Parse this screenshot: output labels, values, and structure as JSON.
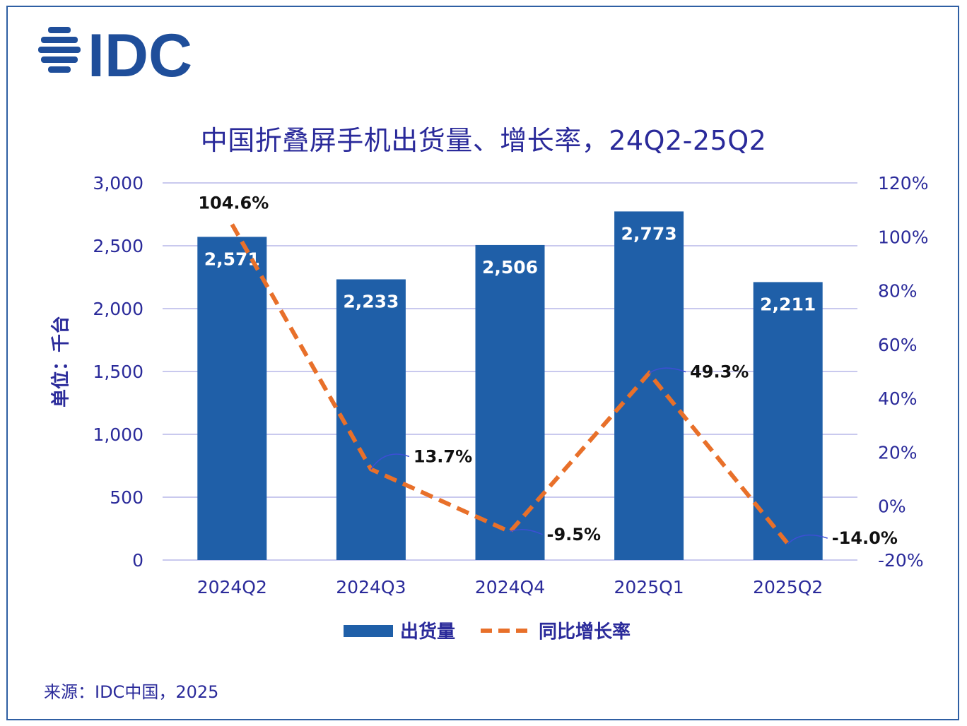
{
  "brand": {
    "logo_text": "IDC",
    "color": "#1f4e9a"
  },
  "chart_data": {
    "type": "bar",
    "title": "中国折叠屏手机出货量、增长率，24Q2-25Q2",
    "categories": [
      "2024Q2",
      "2024Q3",
      "2024Q4",
      "2025Q1",
      "2025Q2"
    ],
    "series": [
      {
        "name": "出货量",
        "type": "bar",
        "axis": "left",
        "color": "#1f5fa8",
        "values": [
          2571,
          2233,
          2506,
          2773,
          2211
        ],
        "labels": [
          "2,571",
          "2,233",
          "2,506",
          "2,773",
          "2,211"
        ]
      },
      {
        "name": "同比增长率",
        "type": "line",
        "style": "dashed",
        "axis": "right",
        "color": "#e8702a",
        "values": [
          104.6,
          13.7,
          -9.5,
          49.3,
          -14.0
        ],
        "labels": [
          "104.6%",
          "13.7%",
          "-9.5%",
          "49.3%",
          "-14.0%"
        ]
      }
    ],
    "ylabel": "单位：千台",
    "ylim": [
      0,
      3000
    ],
    "yticks": [
      "0",
      "500",
      "1,000",
      "1,500",
      "2,000",
      "2,500",
      "3,000"
    ],
    "y2lim": [
      -20,
      120
    ],
    "y2ticks": [
      "-20%",
      "0%",
      "20%",
      "40%",
      "60%",
      "80%",
      "100%",
      "120%"
    ],
    "grid": true,
    "legend": "bottom",
    "colors": {
      "text": "#2a2a9a",
      "grid": "#c9c9ee"
    }
  },
  "source": "来源：IDC中国，2025"
}
